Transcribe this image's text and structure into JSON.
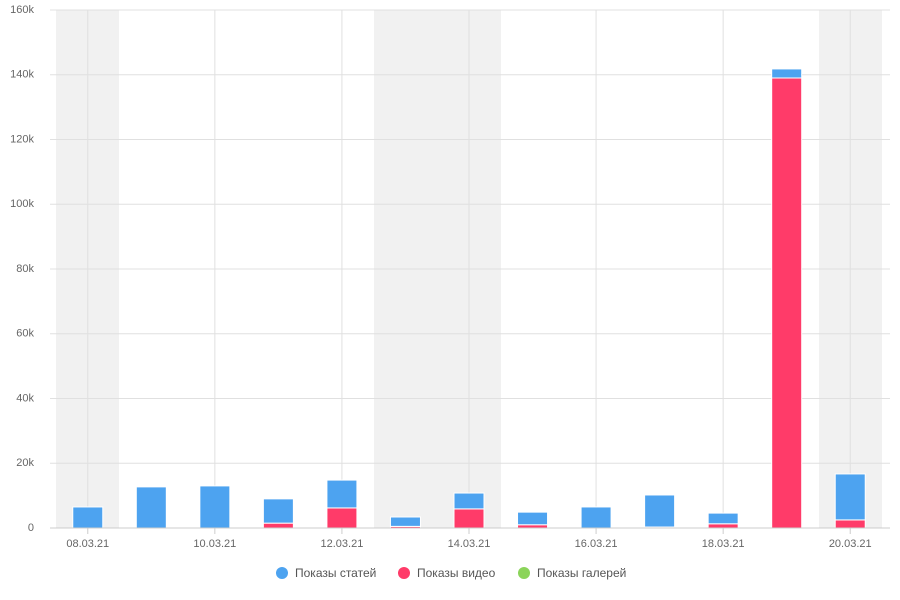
{
  "chart_data": {
    "type": "stacked_bar",
    "categories": [
      "08.03.21",
      null,
      "10.03.21",
      null,
      "12.03.21",
      null,
      "14.03.21",
      null,
      "16.03.21",
      null,
      "18.03.21",
      null,
      "20.03.21"
    ],
    "series": [
      {
        "name": "Показы статей",
        "color": "#4da3f0",
        "values": [
          6500,
          12700,
          13000,
          7500,
          8600,
          2900,
          4900,
          3900,
          6500,
          9900,
          3300,
          2800,
          14200
        ]
      },
      {
        "name": "Показы видео",
        "color": "#ff3b69",
        "values": [
          0,
          0,
          0,
          1500,
          6200,
          500,
          5900,
          1000,
          0,
          300,
          1300,
          139000,
          2500
        ]
      },
      {
        "name": "Показы галерей",
        "color": "#8bd45a",
        "values": [
          0,
          0,
          0,
          0,
          0,
          0,
          0,
          0,
          0,
          0,
          0,
          0,
          0
        ]
      }
    ],
    "ylim": [
      0,
      160000
    ],
    "yticks": [
      0,
      {
        "value": 20000,
        "label": "20k"
      },
      {
        "value": 40000,
        "label": "40k"
      },
      {
        "value": 60000,
        "label": "60k"
      },
      {
        "value": 80000,
        "label": "80k"
      },
      {
        "value": 100000,
        "label": "100k"
      },
      {
        "value": 120000,
        "label": "120k"
      },
      {
        "value": 140000,
        "label": "140k"
      },
      {
        "value": 160000,
        "label": "160k"
      }
    ],
    "grid": true
  }
}
